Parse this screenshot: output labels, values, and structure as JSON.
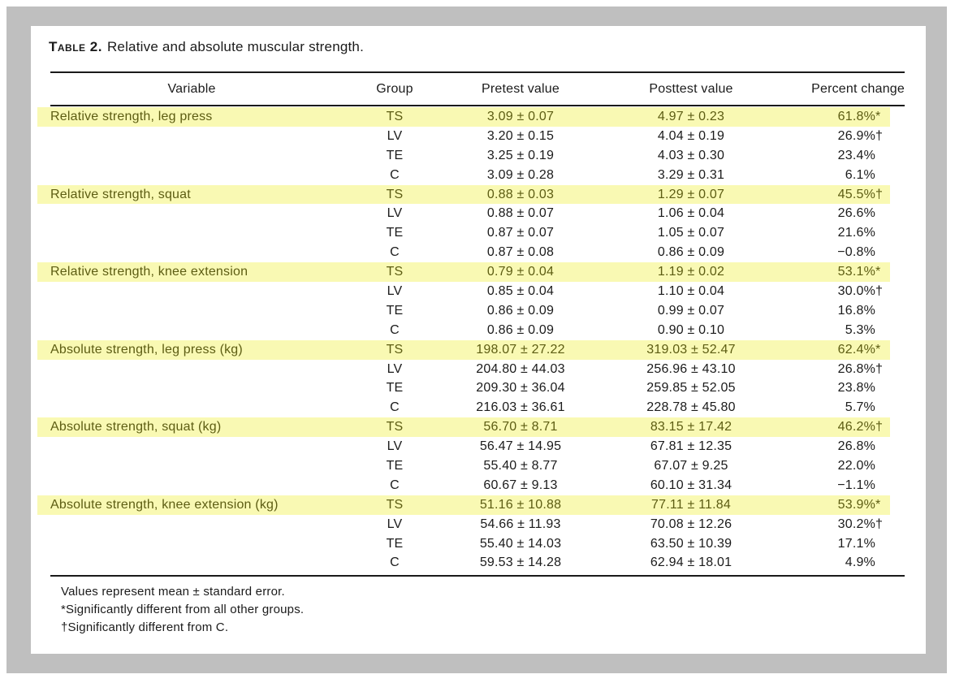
{
  "table": {
    "caption_label": "Table 2.",
    "caption_text": "Relative and absolute muscular strength.",
    "columns": [
      "Variable",
      "Group",
      "Pretest value",
      "Posttest value",
      "Percent change"
    ],
    "rows": [
      {
        "variable": "Relative strength, leg press",
        "group": "TS",
        "pretest": "3.09 ± 0.07",
        "posttest": "4.97 ± 0.23",
        "percent": "61.8%",
        "symbol": "*",
        "highlight": true
      },
      {
        "variable": "",
        "group": "LV",
        "pretest": "3.20 ± 0.15",
        "posttest": "4.04 ± 0.19",
        "percent": "26.9%",
        "symbol": "†",
        "highlight": false
      },
      {
        "variable": "",
        "group": "TE",
        "pretest": "3.25 ± 0.19",
        "posttest": "4.03 ± 0.30",
        "percent": "23.4%",
        "symbol": "",
        "highlight": false
      },
      {
        "variable": "",
        "group": "C",
        "pretest": "3.09 ± 0.28",
        "posttest": "3.29 ± 0.31",
        "percent": "6.1%",
        "symbol": "",
        "highlight": false
      },
      {
        "variable": "Relative strength, squat",
        "group": "TS",
        "pretest": "0.88 ± 0.03",
        "posttest": "1.29 ± 0.07",
        "percent": "45.5%",
        "symbol": "†",
        "highlight": true
      },
      {
        "variable": "",
        "group": "LV",
        "pretest": "0.88 ± 0.07",
        "posttest": "1.06 ± 0.04",
        "percent": "26.6%",
        "symbol": "",
        "highlight": false
      },
      {
        "variable": "",
        "group": "TE",
        "pretest": "0.87 ± 0.07",
        "posttest": "1.05 ± 0.07",
        "percent": "21.6%",
        "symbol": "",
        "highlight": false
      },
      {
        "variable": "",
        "group": "C",
        "pretest": "0.87 ± 0.08",
        "posttest": "0.86 ± 0.09",
        "percent": "−0.8%",
        "symbol": "",
        "highlight": false
      },
      {
        "variable": "Relative strength, knee extension",
        "group": "TS",
        "pretest": "0.79 ± 0.04",
        "posttest": "1.19 ± 0.02",
        "percent": "53.1%",
        "symbol": "*",
        "highlight": true
      },
      {
        "variable": "",
        "group": "LV",
        "pretest": "0.85 ± 0.04",
        "posttest": "1.10 ± 0.04",
        "percent": "30.0%",
        "symbol": "†",
        "highlight": false
      },
      {
        "variable": "",
        "group": "TE",
        "pretest": "0.86 ± 0.09",
        "posttest": "0.99 ± 0.07",
        "percent": "16.8%",
        "symbol": "",
        "highlight": false
      },
      {
        "variable": "",
        "group": "C",
        "pretest": "0.86 ± 0.09",
        "posttest": "0.90 ± 0.10",
        "percent": "5.3%",
        "symbol": "",
        "highlight": false
      },
      {
        "variable": "Absolute strength, leg press (kg)",
        "group": "TS",
        "pretest": "198.07 ± 27.22",
        "posttest": "319.03 ± 52.47",
        "percent": "62.4%",
        "symbol": "*",
        "highlight": true
      },
      {
        "variable": "",
        "group": "LV",
        "pretest": "204.80 ± 44.03",
        "posttest": "256.96 ± 43.10",
        "percent": "26.8%",
        "symbol": "†",
        "highlight": false
      },
      {
        "variable": "",
        "group": "TE",
        "pretest": "209.30 ± 36.04",
        "posttest": "259.85 ± 52.05",
        "percent": "23.8%",
        "symbol": "",
        "highlight": false
      },
      {
        "variable": "",
        "group": "C",
        "pretest": "216.03 ± 36.61",
        "posttest": "228.78 ± 45.80",
        "percent": "5.7%",
        "symbol": "",
        "highlight": false
      },
      {
        "variable": "Absolute strength, squat (kg)",
        "group": "TS",
        "pretest": "56.70 ± 8.71",
        "posttest": "83.15 ± 17.42",
        "percent": "46.2%",
        "symbol": "†",
        "highlight": true
      },
      {
        "variable": "",
        "group": "LV",
        "pretest": "56.47 ± 14.95",
        "posttest": "67.81 ± 12.35",
        "percent": "26.8%",
        "symbol": "",
        "highlight": false
      },
      {
        "variable": "",
        "group": "TE",
        "pretest": "55.40 ± 8.77",
        "posttest": "67.07 ± 9.25",
        "percent": "22.0%",
        "symbol": "",
        "highlight": false
      },
      {
        "variable": "",
        "group": "C",
        "pretest": "60.67 ± 9.13",
        "posttest": "60.10 ± 31.34",
        "percent": "−1.1%",
        "symbol": "",
        "highlight": false
      },
      {
        "variable": "Absolute strength, knee extension (kg)",
        "group": "TS",
        "pretest": "51.16 ± 10.88",
        "posttest": "77.11 ± 11.84",
        "percent": "53.9%",
        "symbol": "*",
        "highlight": true
      },
      {
        "variable": "",
        "group": "LV",
        "pretest": "54.66 ± 11.93",
        "posttest": "70.08 ± 12.26",
        "percent": "30.2%",
        "symbol": "†",
        "highlight": false
      },
      {
        "variable": "",
        "group": "TE",
        "pretest": "55.40 ± 14.03",
        "posttest": "63.50 ± 10.39",
        "percent": "17.1%",
        "symbol": "",
        "highlight": false
      },
      {
        "variable": "",
        "group": "C",
        "pretest": "59.53 ± 14.28",
        "posttest": "62.94 ± 18.01",
        "percent": "4.9%",
        "symbol": "",
        "highlight": false
      }
    ],
    "footnotes": [
      "Values represent mean ± standard error.",
      "*Significantly different from all other groups.",
      "†Significantly different from C."
    ]
  },
  "colors": {
    "frame_gray": "#bfbfbf",
    "highlight_yellow": "#f9f9b3",
    "highlight_text_olive": "#5d5d13",
    "body_text": "#1b1b1b"
  }
}
